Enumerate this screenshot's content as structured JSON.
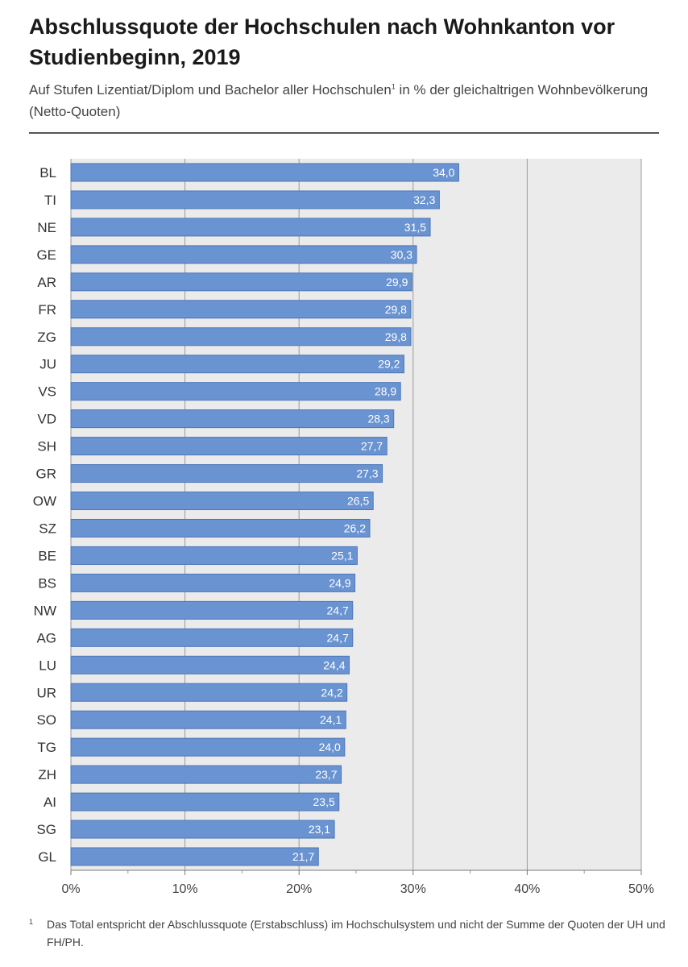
{
  "header": {
    "title": "Abschlussquote der Hochschulen nach Wohnkanton vor Studienbeginn, 2019",
    "subtitle_before": "Auf Stufen Lizentiat/Diplom und Bachelor aller Hochschulen",
    "subtitle_sup": "1",
    "subtitle_after": " in % der gleichaltrigen Wohnbevölkerung (Netto-Quoten)"
  },
  "footnote": {
    "mark": "1",
    "text": "Das Total entspricht der Abschlussquote (Erstabschluss) im Hochschulsystem und nicht der Summe der Quoten der UH und FH/PH."
  },
  "chart_data": {
    "type": "bar",
    "orientation": "horizontal",
    "categories": [
      "BL",
      "TI",
      "NE",
      "GE",
      "AR",
      "FR",
      "ZG",
      "JU",
      "VS",
      "VD",
      "SH",
      "GR",
      "OW",
      "SZ",
      "BE",
      "BS",
      "NW",
      "AG",
      "LU",
      "UR",
      "SO",
      "TG",
      "ZH",
      "AI",
      "SG",
      "GL"
    ],
    "values": [
      34.0,
      32.3,
      31.5,
      30.3,
      29.9,
      29.8,
      29.8,
      29.2,
      28.9,
      28.3,
      27.7,
      27.3,
      26.5,
      26.2,
      25.1,
      24.9,
      24.7,
      24.7,
      24.4,
      24.2,
      24.1,
      24.0,
      23.7,
      23.5,
      23.1,
      21.7
    ],
    "value_labels": [
      "34,0",
      "32,3",
      "31,5",
      "30,3",
      "29,9",
      "29,8",
      "29,8",
      "29,2",
      "28,9",
      "28,3",
      "27,7",
      "27,3",
      "26,5",
      "26,2",
      "25,1",
      "24,9",
      "24,7",
      "24,7",
      "24,4",
      "24,2",
      "24,1",
      "24,0",
      "23,7",
      "23,5",
      "23,1",
      "21,7"
    ],
    "xlim": [
      0,
      50
    ],
    "xticks": [
      "0%",
      "10%",
      "20%",
      "30%",
      "40%",
      "50%"
    ],
    "grid": true,
    "colors": {
      "bar": "#6a93d2",
      "bar_stroke": "#4d77b8",
      "plot_bg": "#ebebeb",
      "grid": "#9a9a9a",
      "label_text": "#ffffff"
    }
  }
}
